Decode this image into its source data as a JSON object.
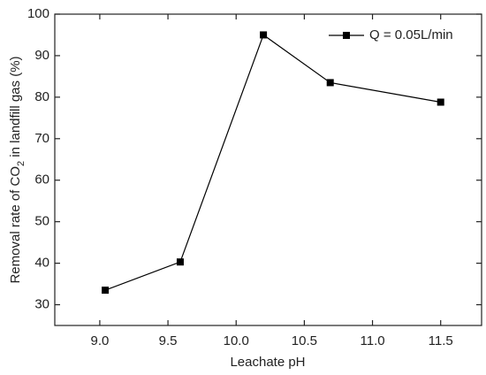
{
  "chart_data": {
    "type": "line",
    "xlabel": "Leachate pH",
    "ylabel": [
      "Removal rate of CO",
      "2",
      " in landfill gas (%)"
    ],
    "x": [
      9.04,
      9.59,
      10.2,
      10.69,
      11.5
    ],
    "series": [
      {
        "name": "Q = 0.05L/min",
        "color": "#000000",
        "values": [
          33.5,
          40.3,
          95,
          83.5,
          78.8
        ]
      }
    ],
    "xlim": [
      8.67,
      11.8
    ],
    "ylim": [
      25,
      100
    ],
    "xticks": [
      {
        "value": 9,
        "label": "9.0"
      },
      {
        "value": 9.5,
        "label": "9.5"
      },
      {
        "value": 10,
        "label": "10.0"
      },
      {
        "value": 10.5,
        "label": "10.5"
      },
      {
        "value": 11,
        "label": "11.0"
      },
      {
        "value": 11.5,
        "label": "11.5"
      }
    ],
    "yticks": [
      30,
      40,
      50,
      60,
      70,
      80,
      90,
      100
    ],
    "legend": "upper right"
  }
}
